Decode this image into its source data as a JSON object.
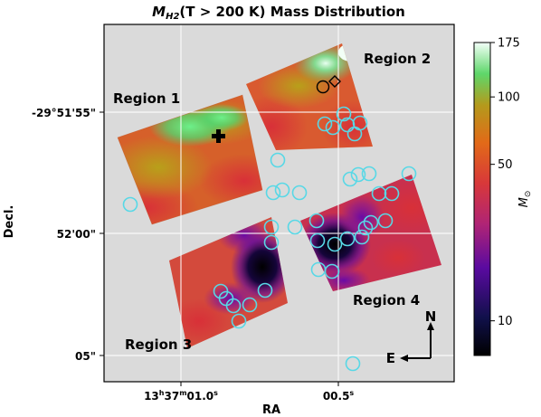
{
  "chart_data": {
    "type": "heatmap",
    "title_main": "M",
    "title_sub": "H2",
    "title_rest": "(T > 200 K) Mass Distribution",
    "xlabel": "RA",
    "ylabel": "Decl.",
    "x_ticks": [
      {
        "h": "13",
        "hs": "h",
        "m": "37",
        "ms": "m",
        "s": "01.0",
        "ss": "s"
      },
      {
        "s": "00.5",
        "ss": "s"
      }
    ],
    "y_ticks": [
      "-29°51'55\"",
      "52'00\"",
      "05\""
    ],
    "colorbar": {
      "label": "M",
      "label_sub": "⊙",
      "ticks": [
        10,
        50,
        100,
        175
      ],
      "range": [
        7,
        175
      ],
      "scale": "log",
      "colormap": "gnuplot2-like"
    },
    "regions": [
      "Region 1",
      "Region 2",
      "Region 3",
      "Region 4"
    ],
    "compass": {
      "north": "N",
      "east": "E"
    },
    "markers": [
      {
        "shape": "plus",
        "color": "#000000",
        "region": "Region 1"
      },
      {
        "shape": "circle",
        "color": "#000000",
        "region": "Region 2"
      },
      {
        "shape": "diamond",
        "color": "#000000",
        "region": "Region 2"
      }
    ],
    "circle_color": "#58d8e6",
    "circle_count": 32,
    "grid": true,
    "background": "#dadada"
  }
}
